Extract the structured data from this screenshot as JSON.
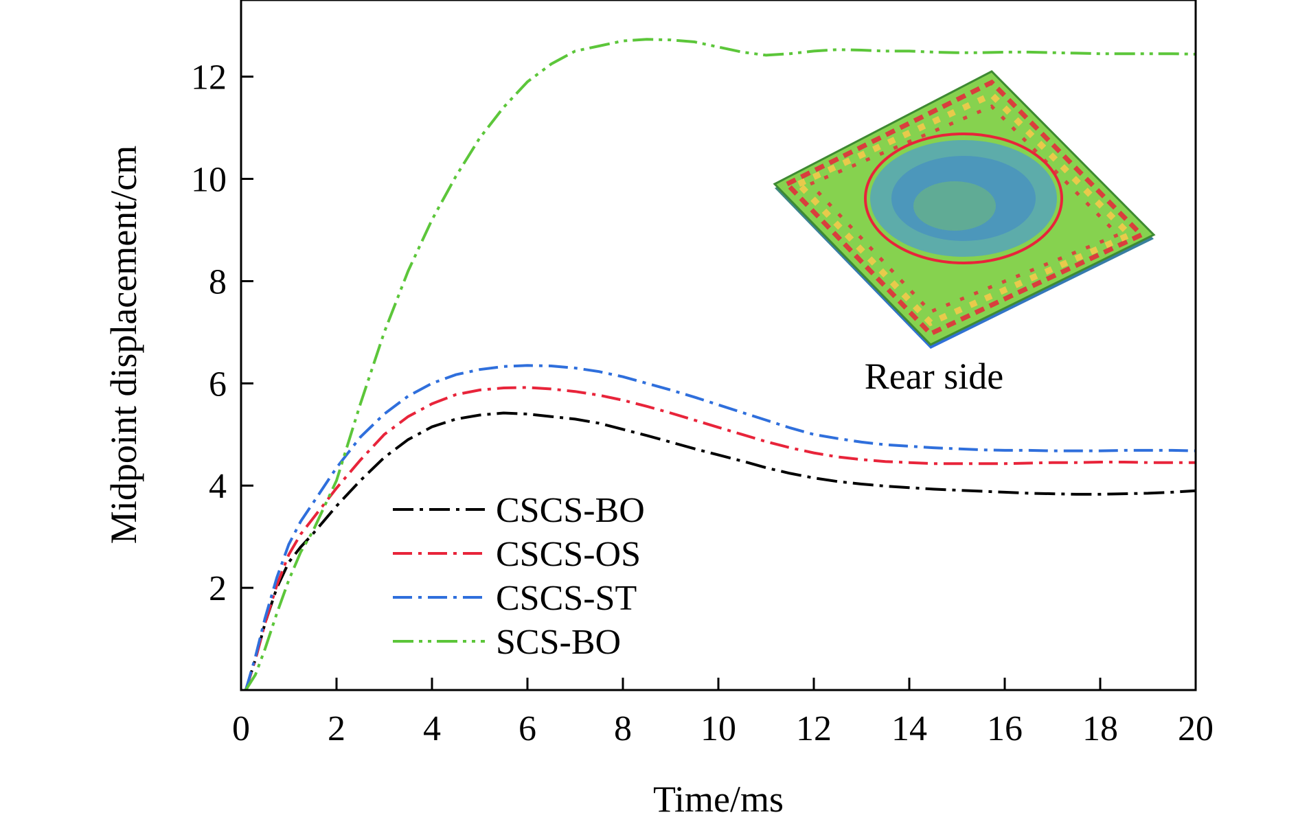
{
  "chart_data": {
    "type": "line",
    "title": "",
    "xlabel": "Time/ms",
    "ylabel": "Midpoint displacement/cm",
    "xlim": [
      0,
      20
    ],
    "ylim": [
      0,
      13.5
    ],
    "xticks": [
      0,
      2,
      4,
      6,
      8,
      10,
      12,
      14,
      16,
      18,
      20
    ],
    "yticks": [
      2,
      4,
      6,
      8,
      10,
      12
    ],
    "grid": false,
    "legend_position": "lower-left",
    "annotations": [
      {
        "text": "Rear side"
      }
    ],
    "x": [
      0.1,
      0.3,
      0.5,
      0.75,
      1,
      1.25,
      1.5,
      2,
      2.5,
      3,
      3.5,
      4,
      4.5,
      5,
      5.5,
      6,
      6.5,
      7,
      7.5,
      8,
      8.5,
      9,
      9.5,
      10,
      10.5,
      11,
      11.5,
      12,
      12.5,
      13,
      13.5,
      14,
      14.5,
      15,
      15.5,
      16,
      16.5,
      17,
      17.5,
      18,
      18.5,
      19,
      19.5,
      20
    ],
    "series": [
      {
        "name": "CSCS-BO",
        "color": "#000000",
        "values": [
          0,
          0.6,
          1.3,
          2.0,
          2.5,
          2.8,
          3.05,
          3.6,
          4.1,
          4.55,
          4.9,
          5.15,
          5.3,
          5.38,
          5.42,
          5.4,
          5.35,
          5.3,
          5.22,
          5.1,
          4.98,
          4.85,
          4.72,
          4.6,
          4.48,
          4.35,
          4.24,
          4.15,
          4.08,
          4.03,
          3.99,
          3.96,
          3.93,
          3.91,
          3.89,
          3.87,
          3.85,
          3.84,
          3.83,
          3.83,
          3.84,
          3.85,
          3.87,
          3.9
        ]
      },
      {
        "name": "CSCS-OS",
        "color": "#e8243a",
        "values": [
          0,
          0.6,
          1.3,
          2.05,
          2.65,
          3.05,
          3.35,
          3.95,
          4.5,
          5.0,
          5.35,
          5.6,
          5.78,
          5.87,
          5.91,
          5.92,
          5.89,
          5.84,
          5.77,
          5.67,
          5.55,
          5.42,
          5.28,
          5.14,
          5.0,
          4.86,
          4.74,
          4.64,
          4.56,
          4.51,
          4.47,
          4.45,
          4.43,
          4.43,
          4.43,
          4.43,
          4.44,
          4.45,
          4.45,
          4.46,
          4.46,
          4.45,
          4.45,
          4.45
        ]
      },
      {
        "name": "CSCS-ST",
        "color": "#2f6fdc",
        "values": [
          0,
          0.65,
          1.4,
          2.2,
          2.85,
          3.3,
          3.65,
          4.35,
          4.95,
          5.4,
          5.75,
          6.0,
          6.17,
          6.27,
          6.33,
          6.35,
          6.34,
          6.3,
          6.23,
          6.13,
          6.0,
          5.87,
          5.73,
          5.58,
          5.43,
          5.28,
          5.13,
          5.0,
          4.92,
          4.85,
          4.8,
          4.77,
          4.74,
          4.72,
          4.7,
          4.69,
          4.69,
          4.68,
          4.68,
          4.68,
          4.69,
          4.69,
          4.69,
          4.68
        ]
      },
      {
        "name": "SCS-BO",
        "color": "#5cc63a",
        "values": [
          0,
          0.3,
          0.8,
          1.5,
          2.15,
          2.7,
          3.1,
          4.1,
          5.6,
          7.0,
          8.2,
          9.2,
          10.05,
          10.8,
          11.4,
          11.9,
          12.25,
          12.5,
          12.6,
          12.7,
          12.73,
          12.72,
          12.68,
          12.58,
          12.48,
          12.42,
          12.45,
          12.5,
          12.53,
          12.52,
          12.5,
          12.5,
          12.48,
          12.47,
          12.47,
          12.48,
          12.48,
          12.47,
          12.46,
          12.45,
          12.45,
          12.45,
          12.45,
          12.44
        ]
      }
    ]
  }
}
